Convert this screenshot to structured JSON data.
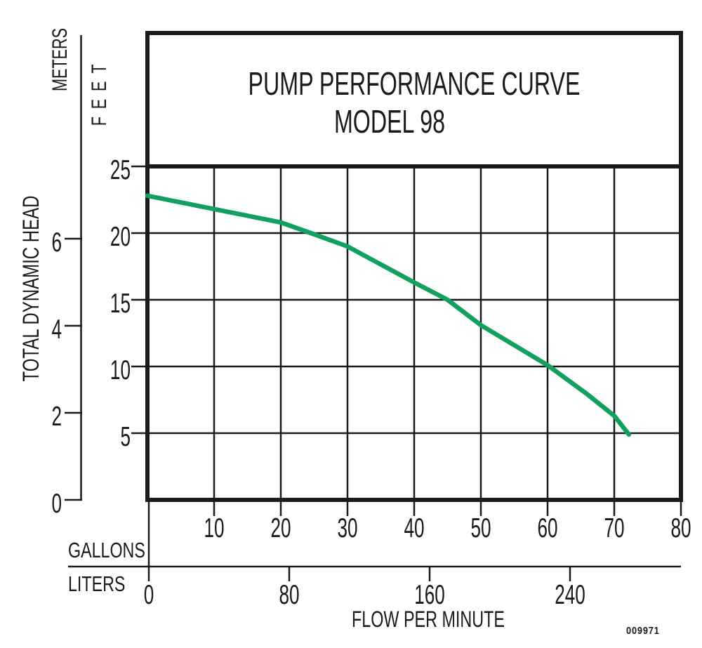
{
  "colors": {
    "ink": "#1a1a1a",
    "curve_green": "#12a05f",
    "background": "#ffffff"
  },
  "doc_number": "009971",
  "chart_data": {
    "type": "line",
    "title": "PUMP PERFORMANCE CURVE",
    "subtitle": "MODEL 98",
    "x_axis_label": "FLOW PER MINUTE",
    "y_axis_label": "TOTAL DYNAMIC HEAD",
    "grid": true,
    "legend": false,
    "x_gallons": {
      "label": "GALLONS",
      "min": 0,
      "max": 80,
      "ticks": [
        10,
        20,
        30,
        40,
        50,
        60,
        70,
        80
      ]
    },
    "x_liters": {
      "label": "LITERS",
      "min": 0,
      "ticks": [
        0,
        80,
        160,
        240
      ]
    },
    "y_feet": {
      "label": "FEET",
      "min": 0,
      "max": 25,
      "ticks": [
        25,
        20,
        15,
        10,
        5
      ]
    },
    "y_meters": {
      "label": "METERS",
      "min": 0,
      "max": 6,
      "ticks": [
        6,
        4,
        2,
        0
      ]
    },
    "series": [
      {
        "name": "MODEL 98",
        "color": "#12a05f",
        "units": "gallons per minute vs feet of total dynamic head",
        "points_gpm_ft": [
          [
            0,
            22.8
          ],
          [
            10,
            21.8
          ],
          [
            20,
            20.8
          ],
          [
            24.5,
            20.0
          ],
          [
            30,
            19.0
          ],
          [
            40,
            16.3
          ],
          [
            45,
            15.0
          ],
          [
            50,
            13.1
          ],
          [
            55,
            11.6
          ],
          [
            60,
            10.1
          ],
          [
            66,
            7.9
          ],
          [
            70,
            6.3
          ],
          [
            72.2,
            4.9
          ]
        ]
      }
    ]
  }
}
